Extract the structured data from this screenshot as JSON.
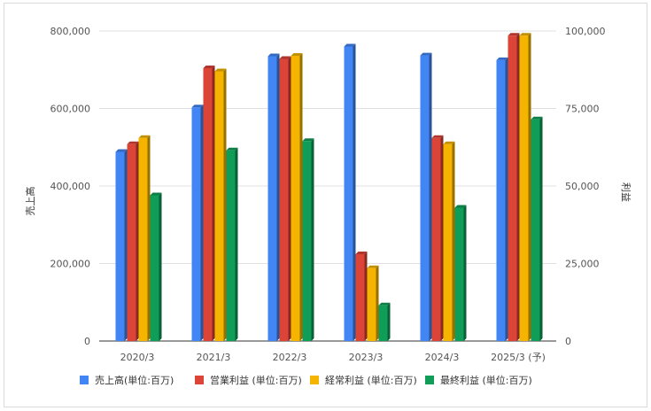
{
  "chart_data": {
    "type": "bar",
    "categories": [
      "2020/3",
      "2021/3",
      "2022/3",
      "2023/3",
      "2024/3",
      "2025/3 (予)"
    ],
    "series": [
      {
        "name": "売上高(単位:百万)",
        "axis": "left",
        "color": "#4285f4",
        "values": [
          488000,
          603000,
          735000,
          760000,
          737000,
          725000
        ]
      },
      {
        "name": "営業利益 (単位:百万)",
        "axis": "right",
        "color": "#db4437",
        "values": [
          63500,
          88000,
          91000,
          28000,
          65500,
          98500
        ]
      },
      {
        "name": "経常利益 (単位:百万)",
        "axis": "right",
        "color": "#f4b400",
        "values": [
          65500,
          87000,
          92000,
          23500,
          63500,
          98500
        ]
      },
      {
        "name": "最終利益 (単位:百万)",
        "axis": "right",
        "color": "#0f9d58",
        "values": [
          47000,
          61500,
          64500,
          11500,
          43000,
          71500
        ]
      }
    ],
    "ylabel": "売上高",
    "y2label": "利益",
    "ylim": [
      0,
      800000
    ],
    "y2lim": [
      0,
      100000
    ],
    "yticks": [
      "0",
      "200,000",
      "400,000",
      "600,000",
      "800,000"
    ],
    "y2ticks": [
      "0",
      "25,000",
      "50,000",
      "75,000",
      "100,000"
    ],
    "grid": true,
    "legend": "bottom"
  }
}
